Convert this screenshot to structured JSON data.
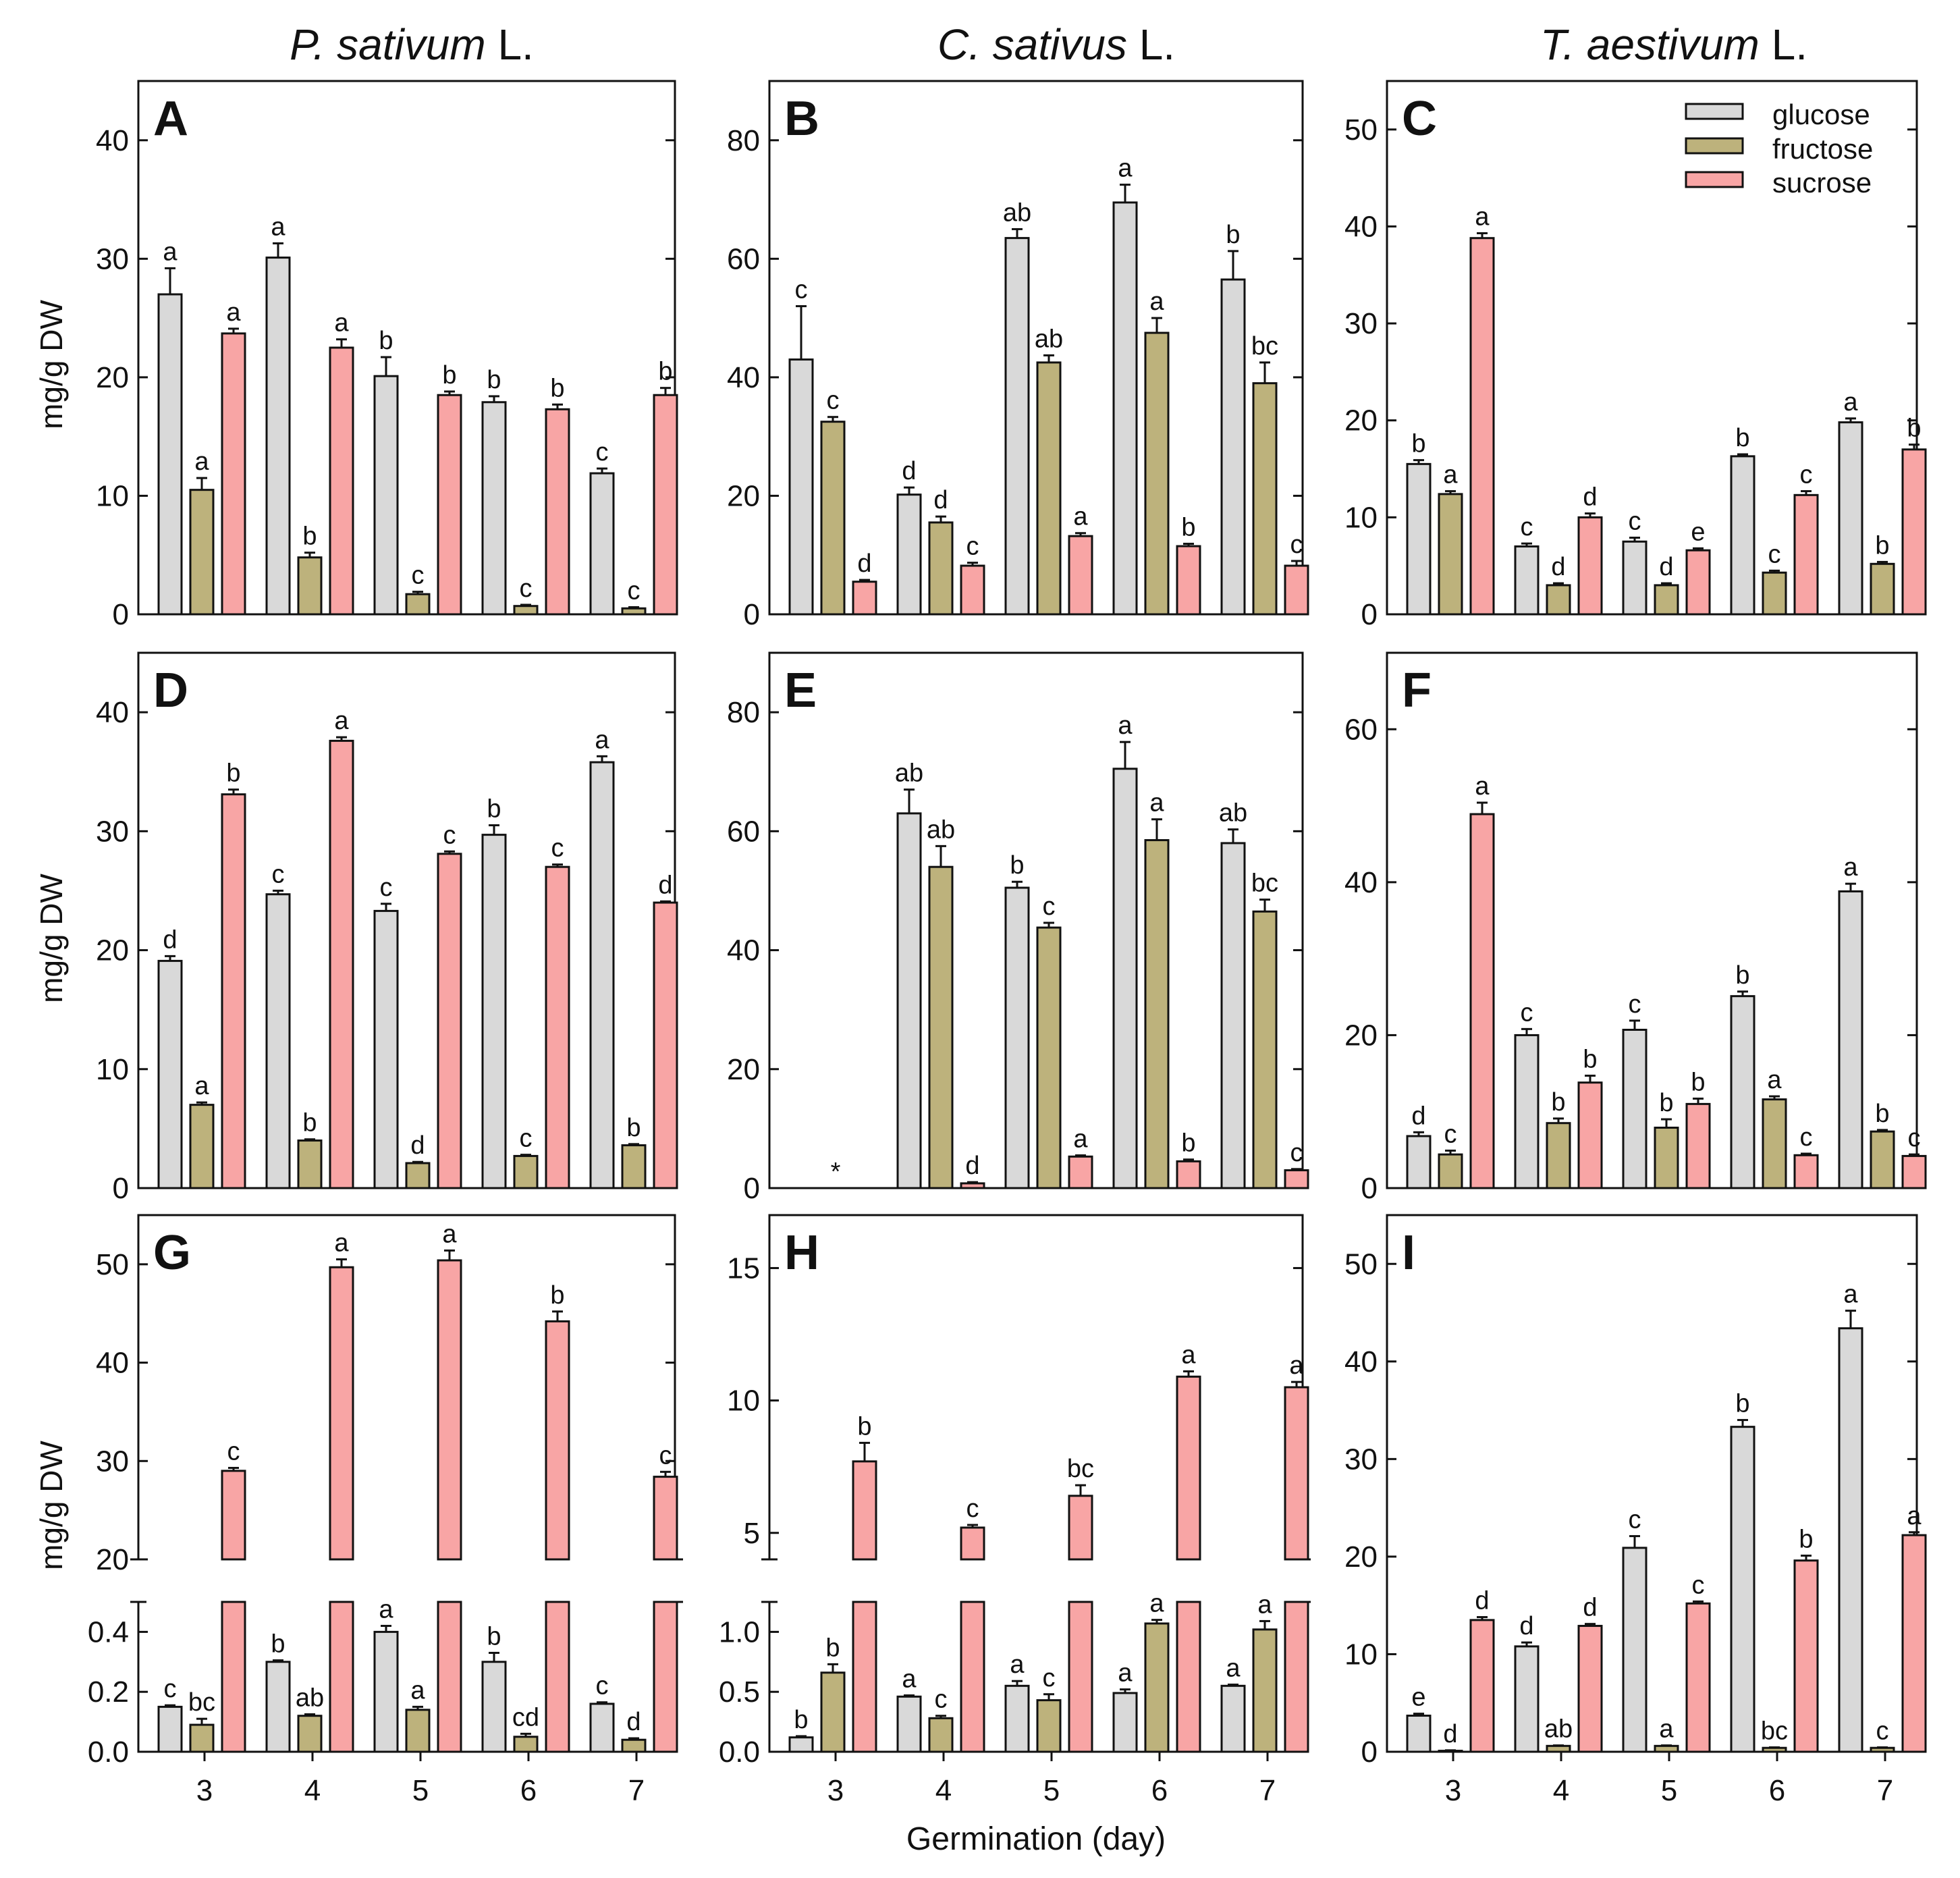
{
  "colors": {
    "glucose": "#d9d9d9",
    "fructose": "#bdb27c",
    "sucrose": "#f8a5a5",
    "axis": "#111111"
  },
  "species_titles": [
    {
      "genus": "P. sativum",
      "suffix": " L."
    },
    {
      "genus": "C. sativus",
      "suffix": " L."
    },
    {
      "genus": "T. aestivum",
      "suffix": " L."
    }
  ],
  "legend": [
    "glucose",
    "fructose",
    "sucrose"
  ],
  "y_axis_label": "mg/g DW",
  "x_axis_label": "Germination (day)",
  "chart_data": [
    {
      "panel": "A",
      "type": "bar",
      "categories": [
        "3",
        "4",
        "5",
        "6",
        "7"
      ],
      "ylim": [
        0,
        45
      ],
      "yticks": [
        0,
        10,
        20,
        30,
        40
      ],
      "series": [
        {
          "name": "glucose",
          "values": [
            27.0,
            30.1,
            20.1,
            17.9,
            11.9
          ],
          "errors": [
            2.2,
            1.2,
            1.6,
            0.5,
            0.4
          ],
          "letters": [
            "a",
            "a",
            "b",
            "b",
            "c"
          ]
        },
        {
          "name": "fructose",
          "values": [
            10.5,
            4.8,
            1.7,
            0.7,
            0.5
          ],
          "errors": [
            1.0,
            0.4,
            0.2,
            0.1,
            0.1
          ],
          "letters": [
            "a",
            "b",
            "c",
            "c",
            "c"
          ]
        },
        {
          "name": "sucrose",
          "values": [
            23.7,
            22.5,
            18.5,
            17.3,
            18.5
          ],
          "errors": [
            0.4,
            0.7,
            0.3,
            0.4,
            0.6
          ],
          "letters": [
            "a",
            "a",
            "b",
            "b",
            "b"
          ]
        }
      ]
    },
    {
      "panel": "B",
      "type": "bar",
      "categories": [
        "3",
        "4",
        "5",
        "6",
        "7"
      ],
      "ylim": [
        0,
        90
      ],
      "yticks": [
        0,
        20,
        40,
        60,
        80
      ],
      "series": [
        {
          "name": "glucose",
          "values": [
            43.0,
            20.2,
            63.5,
            69.5,
            56.5
          ],
          "errors": [
            9.0,
            1.2,
            1.5,
            3.0,
            4.8
          ],
          "letters": [
            "c",
            "d",
            "ab",
            "a",
            "b"
          ]
        },
        {
          "name": "fructose",
          "values": [
            32.5,
            15.5,
            42.5,
            47.5,
            39.0
          ],
          "errors": [
            0.8,
            1.0,
            1.2,
            2.5,
            3.5
          ],
          "letters": [
            "c",
            "d",
            "ab",
            "a",
            "bc"
          ]
        },
        {
          "name": "sucrose",
          "values": [
            5.5,
            8.2,
            13.2,
            11.5,
            8.2
          ],
          "errors": [
            0.3,
            0.5,
            0.5,
            0.4,
            0.8
          ],
          "letters": [
            "d",
            "c",
            "a",
            "b",
            "c"
          ]
        }
      ]
    },
    {
      "panel": "C",
      "type": "bar",
      "categories": [
        "3",
        "4",
        "5",
        "6",
        "7"
      ],
      "ylim": [
        0,
        55
      ],
      "yticks": [
        0,
        10,
        20,
        30,
        40,
        50
      ],
      "series": [
        {
          "name": "glucose",
          "values": [
            15.5,
            7.0,
            7.5,
            16.3,
            19.8
          ],
          "errors": [
            0.4,
            0.3,
            0.4,
            0.2,
            0.4
          ],
          "letters": [
            "b",
            "c",
            "c",
            "b",
            "a"
          ]
        },
        {
          "name": "fructose",
          "values": [
            12.4,
            3.0,
            3.0,
            4.3,
            5.2
          ],
          "errors": [
            0.3,
            0.2,
            0.2,
            0.2,
            0.2
          ],
          "letters": [
            "a",
            "d",
            "d",
            "c",
            "b"
          ]
        },
        {
          "name": "sucrose",
          "values": [
            38.8,
            10.0,
            6.6,
            12.3,
            17.0
          ],
          "errors": [
            0.5,
            0.4,
            0.2,
            0.4,
            0.5
          ],
          "letters": [
            "a",
            "d",
            "e",
            "c",
            "b"
          ]
        }
      ]
    },
    {
      "panel": "D",
      "type": "bar",
      "categories": [
        "3",
        "4",
        "5",
        "6",
        "7"
      ],
      "ylim": [
        0,
        45
      ],
      "yticks": [
        0,
        10,
        20,
        30,
        40
      ],
      "series": [
        {
          "name": "glucose",
          "values": [
            19.1,
            24.7,
            23.3,
            29.7,
            35.8
          ],
          "errors": [
            0.4,
            0.3,
            0.6,
            0.8,
            0.5
          ],
          "letters": [
            "d",
            "c",
            "c",
            "b",
            "a"
          ]
        },
        {
          "name": "fructose",
          "values": [
            7.0,
            4.0,
            2.1,
            2.7,
            3.6
          ],
          "errors": [
            0.2,
            0.1,
            0.1,
            0.1,
            0.1
          ],
          "letters": [
            "a",
            "b",
            "d",
            "c",
            "b"
          ]
        },
        {
          "name": "sucrose",
          "values": [
            33.1,
            37.6,
            28.1,
            27.0,
            24.0
          ],
          "errors": [
            0.4,
            0.3,
            0.2,
            0.2,
            0.1
          ],
          "letters": [
            "b",
            "a",
            "c",
            "c",
            "d"
          ]
        }
      ]
    },
    {
      "panel": "E",
      "type": "bar",
      "categories": [
        "3",
        "4",
        "5",
        "6",
        "7"
      ],
      "ylim": [
        0,
        90
      ],
      "yticks": [
        0,
        20,
        40,
        60,
        80
      ],
      "series": [
        {
          "name": "glucose",
          "values": [
            0,
            63.0,
            50.5,
            70.5,
            58.0
          ],
          "errors": [
            0,
            4.0,
            1.0,
            4.5,
            2.3
          ],
          "letters": [
            "",
            "ab",
            "b",
            "a",
            "ab"
          ]
        },
        {
          "name": "fructose",
          "values": [
            0,
            54.0,
            43.8,
            58.5,
            46.5
          ],
          "errors": [
            0,
            3.5,
            0.8,
            3.5,
            2.0
          ],
          "letters": [
            "",
            "ab",
            "c",
            "a",
            "bc"
          ]
        },
        {
          "name": "sucrose",
          "values": [
            0,
            0.8,
            5.3,
            4.5,
            3.0
          ],
          "errors": [
            0,
            0.2,
            0.2,
            0.3,
            0.2
          ],
          "letters": [
            "",
            "d",
            "a",
            "b",
            "c"
          ]
        }
      ],
      "annotation": "*"
    },
    {
      "panel": "F",
      "type": "bar",
      "categories": [
        "3",
        "4",
        "5",
        "6",
        "7"
      ],
      "ylim": [
        0,
        70
      ],
      "yticks": [
        0,
        20,
        40,
        60
      ],
      "series": [
        {
          "name": "glucose",
          "values": [
            6.8,
            20.0,
            20.7,
            25.1,
            38.8
          ],
          "errors": [
            0.5,
            0.8,
            1.2,
            0.6,
            1.0
          ],
          "letters": [
            "d",
            "c",
            "c",
            "b",
            "a"
          ]
        },
        {
          "name": "fructose",
          "values": [
            4.4,
            8.5,
            7.9,
            11.6,
            7.4
          ],
          "errors": [
            0.5,
            0.6,
            1.1,
            0.4,
            0.2
          ],
          "letters": [
            "c",
            "b",
            "b",
            "a",
            "b"
          ]
        },
        {
          "name": "sucrose",
          "values": [
            48.9,
            13.8,
            11.0,
            4.3,
            4.2
          ],
          "errors": [
            1.5,
            0.9,
            0.7,
            0.2,
            0.2
          ],
          "letters": [
            "a",
            "b",
            "b",
            "c",
            "c"
          ]
        }
      ]
    },
    {
      "panel": "G",
      "type": "bar",
      "categories": [
        "3",
        "4",
        "5",
        "6",
        "7"
      ],
      "broken_axis": true,
      "upper_range": [
        20,
        55
      ],
      "upper_ticks": [
        20,
        30,
        40,
        50
      ],
      "lower_range": [
        0,
        0.5
      ],
      "lower_ticks": [
        "0.0",
        "0.2",
        "0.4"
      ],
      "series": [
        {
          "name": "glucose",
          "values": [
            0.15,
            0.3,
            0.4,
            0.3,
            0.16
          ],
          "errors": [
            0.005,
            0.005,
            0.02,
            0.03,
            0.005
          ],
          "letters": [
            "c",
            "b",
            "a",
            "b",
            "c"
          ]
        },
        {
          "name": "fructose",
          "values": [
            0.09,
            0.12,
            0.14,
            0.05,
            0.04
          ],
          "errors": [
            0.02,
            0.005,
            0.01,
            0.01,
            0.005
          ],
          "letters": [
            "bc",
            "ab",
            "a",
            "cd",
            "d"
          ]
        },
        {
          "name": "sucrose",
          "values": [
            29.0,
            49.7,
            50.4,
            44.2,
            28.4
          ],
          "errors": [
            0.3,
            0.8,
            1.0,
            1.0,
            0.5
          ],
          "letters": [
            "c",
            "a",
            "a",
            "b",
            "c"
          ]
        }
      ]
    },
    {
      "panel": "H",
      "type": "bar",
      "categories": [
        "3",
        "4",
        "5",
        "6",
        "7"
      ],
      "broken_axis": true,
      "upper_range": [
        4,
        17
      ],
      "upper_ticks": [
        5,
        10,
        15
      ],
      "lower_range": [
        0,
        1.25
      ],
      "lower_ticks": [
        "0.0",
        "0.5",
        "1.0"
      ],
      "series": [
        {
          "name": "glucose",
          "values": [
            0.12,
            0.46,
            0.55,
            0.49,
            0.55
          ],
          "errors": [
            0.01,
            0.01,
            0.04,
            0.03,
            0.01
          ],
          "letters": [
            "b",
            "a",
            "a",
            "a",
            "a"
          ]
        },
        {
          "name": "fructose",
          "values": [
            0.66,
            0.28,
            0.43,
            1.07,
            1.02
          ],
          "errors": [
            0.07,
            0.02,
            0.05,
            0.03,
            0.07
          ],
          "letters": [
            "b",
            "c",
            "c",
            "a",
            "a"
          ]
        },
        {
          "name": "sucrose",
          "values": [
            7.7,
            5.2,
            6.4,
            10.9,
            10.5
          ],
          "errors": [
            0.7,
            0.1,
            0.4,
            0.2,
            0.2
          ],
          "letters": [
            "b",
            "c",
            "bc",
            "a",
            "a"
          ]
        }
      ]
    },
    {
      "panel": "I",
      "type": "bar",
      "categories": [
        "3",
        "4",
        "5",
        "6",
        "7"
      ],
      "ylim": [
        0,
        55
      ],
      "yticks": [
        0,
        10,
        20,
        30,
        40,
        50
      ],
      "series": [
        {
          "name": "glucose",
          "values": [
            3.7,
            10.8,
            20.9,
            33.3,
            43.4
          ],
          "errors": [
            0.2,
            0.4,
            1.2,
            0.7,
            1.8
          ],
          "letters": [
            "e",
            "d",
            "c",
            "b",
            "a"
          ]
        },
        {
          "name": "fructose",
          "values": [
            0.1,
            0.6,
            0.6,
            0.4,
            0.4
          ],
          "errors": [
            0.05,
            0.05,
            0.05,
            0.05,
            0.05
          ],
          "letters": [
            "d",
            "ab",
            "a",
            "bc",
            "c"
          ]
        },
        {
          "name": "sucrose",
          "values": [
            13.5,
            12.9,
            15.2,
            19.6,
            22.2
          ],
          "errors": [
            0.3,
            0.2,
            0.2,
            0.5,
            0.3
          ],
          "letters": [
            "d",
            "d",
            "c",
            "b",
            "a"
          ]
        }
      ]
    }
  ]
}
